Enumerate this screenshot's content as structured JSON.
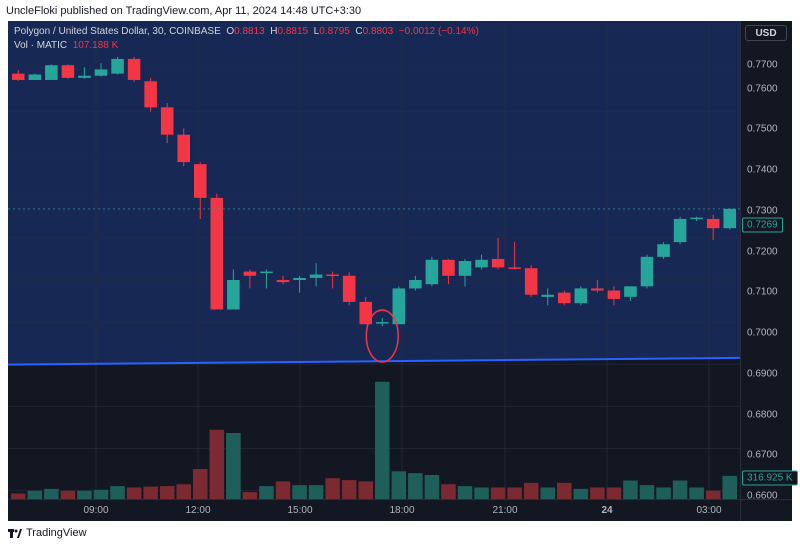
{
  "header": {
    "published_line": "UncleFloki published on TradingView.com, Apr 11, 2024 14:48 UTC+3:30"
  },
  "legend": {
    "symbol": "Polygon / United States Dollar, 30, COINBASE",
    "o_label": "O",
    "o_value": "0.8813",
    "h_label": "H",
    "h_value": "0.8815",
    "l_label": "L",
    "l_value": "0.8795",
    "c_label": "C",
    "c_value": "0.8803",
    "change": "−0.0012 (−0.14%)",
    "vol_label": "Vol · MATIC",
    "vol_value": "107.188 K"
  },
  "price_axis": {
    "currency_button": "USD",
    "ticks": [
      "0.7700",
      "0.7600",
      "0.7500",
      "0.7400",
      "0.7300",
      "0.7200",
      "0.7100",
      "0.7000",
      "0.6900",
      "0.6800",
      "0.6700",
      "0.6600"
    ],
    "last_price_tag": "0.7269",
    "volume_tag": "316.925 K"
  },
  "time_axis": {
    "ticks": [
      "09:00",
      "12:00",
      "15:00",
      "18:00",
      "21:00",
      "24",
      "03:00"
    ]
  },
  "footer": {
    "brand": "TradingView"
  },
  "colors": {
    "background": "#131722",
    "upper_shade": "#1a2b5e",
    "bull": "#26a69a",
    "bear": "#f23645",
    "vol_bull": "#1e5f5a",
    "vol_bear": "#7a2a30",
    "trendline": "#2962ff",
    "ellipse": "#f23645"
  },
  "chart_data": {
    "type": "candlestick",
    "title": "Polygon / United States Dollar, 30, COINBASE",
    "ylim": [
      0.658,
      0.7715
    ],
    "grid": true,
    "candles": [
      {
        "o": 0.759,
        "h": 0.7598,
        "l": 0.7573,
        "c": 0.7575
      },
      {
        "o": 0.7575,
        "h": 0.759,
        "l": 0.7575,
        "c": 0.7588
      },
      {
        "o": 0.7575,
        "h": 0.7612,
        "l": 0.7575,
        "c": 0.761
      },
      {
        "o": 0.761,
        "h": 0.7612,
        "l": 0.7578,
        "c": 0.758
      },
      {
        "o": 0.758,
        "h": 0.7605,
        "l": 0.7578,
        "c": 0.7585
      },
      {
        "o": 0.7585,
        "h": 0.7615,
        "l": 0.7583,
        "c": 0.76
      },
      {
        "o": 0.759,
        "h": 0.763,
        "l": 0.7588,
        "c": 0.7625
      },
      {
        "o": 0.7625,
        "h": 0.763,
        "l": 0.757,
        "c": 0.7575
      },
      {
        "o": 0.7572,
        "h": 0.758,
        "l": 0.75,
        "c": 0.751
      },
      {
        "o": 0.751,
        "h": 0.752,
        "l": 0.7425,
        "c": 0.7445
      },
      {
        "o": 0.7445,
        "h": 0.746,
        "l": 0.737,
        "c": 0.738
      },
      {
        "o": 0.7375,
        "h": 0.738,
        "l": 0.7245,
        "c": 0.7295
      },
      {
        "o": 0.7295,
        "h": 0.7305,
        "l": 0.703,
        "c": 0.703
      },
      {
        "o": 0.703,
        "h": 0.7125,
        "l": 0.703,
        "c": 0.71
      },
      {
        "o": 0.712,
        "h": 0.7125,
        "l": 0.708,
        "c": 0.711
      },
      {
        "o": 0.712,
        "h": 0.7125,
        "l": 0.708,
        "c": 0.712
      },
      {
        "o": 0.71,
        "h": 0.711,
        "l": 0.709,
        "c": 0.7095
      },
      {
        "o": 0.71,
        "h": 0.711,
        "l": 0.707,
        "c": 0.7105
      },
      {
        "o": 0.7105,
        "h": 0.714,
        "l": 0.7085,
        "c": 0.7113
      },
      {
        "o": 0.7113,
        "h": 0.712,
        "l": 0.708,
        "c": 0.711
      },
      {
        "o": 0.711,
        "h": 0.7118,
        "l": 0.704,
        "c": 0.7048
      },
      {
        "o": 0.7048,
        "h": 0.706,
        "l": 0.6995,
        "c": 0.6995
      },
      {
        "o": 0.7,
        "h": 0.701,
        "l": 0.699,
        "c": 0.7
      },
      {
        "o": 0.6995,
        "h": 0.7085,
        "l": 0.6995,
        "c": 0.708
      },
      {
        "o": 0.708,
        "h": 0.711,
        "l": 0.7075,
        "c": 0.71
      },
      {
        "o": 0.709,
        "h": 0.7155,
        "l": 0.7085,
        "c": 0.7148
      },
      {
        "o": 0.7148,
        "h": 0.715,
        "l": 0.709,
        "c": 0.711
      },
      {
        "o": 0.711,
        "h": 0.715,
        "l": 0.7085,
        "c": 0.7145
      },
      {
        "o": 0.713,
        "h": 0.716,
        "l": 0.7125,
        "c": 0.7148
      },
      {
        "o": 0.715,
        "h": 0.72,
        "l": 0.7125,
        "c": 0.713
      },
      {
        "o": 0.713,
        "h": 0.719,
        "l": 0.7125,
        "c": 0.7128
      },
      {
        "o": 0.7128,
        "h": 0.7135,
        "l": 0.706,
        "c": 0.7065
      },
      {
        "o": 0.706,
        "h": 0.708,
        "l": 0.704,
        "c": 0.7065
      },
      {
        "o": 0.707,
        "h": 0.7075,
        "l": 0.704,
        "c": 0.7045
      },
      {
        "o": 0.7045,
        "h": 0.7085,
        "l": 0.704,
        "c": 0.708
      },
      {
        "o": 0.708,
        "h": 0.71,
        "l": 0.707,
        "c": 0.7075
      },
      {
        "o": 0.7075,
        "h": 0.7085,
        "l": 0.704,
        "c": 0.7055
      },
      {
        "o": 0.706,
        "h": 0.708,
        "l": 0.705,
        "c": 0.7085
      },
      {
        "o": 0.7085,
        "h": 0.716,
        "l": 0.708,
        "c": 0.7155
      },
      {
        "o": 0.7155,
        "h": 0.719,
        "l": 0.715,
        "c": 0.7185
      },
      {
        "o": 0.719,
        "h": 0.725,
        "l": 0.7185,
        "c": 0.7245
      },
      {
        "o": 0.7245,
        "h": 0.725,
        "l": 0.724,
        "c": 0.7248
      },
      {
        "o": 0.7245,
        "h": 0.7255,
        "l": 0.7195,
        "c": 0.7223
      },
      {
        "o": 0.7223,
        "h": 0.727,
        "l": 0.722,
        "c": 0.7269
      }
    ],
    "volume": [
      12,
      18,
      22,
      18,
      18,
      20,
      28,
      25,
      27,
      28,
      32,
      65,
      150,
      143,
      15,
      28,
      38,
      30,
      30,
      45,
      41,
      38,
      254,
      60,
      56,
      52,
      32,
      28,
      25,
      25,
      25,
      35,
      25,
      35,
      22,
      25,
      25,
      40,
      30,
      25,
      40,
      25,
      18,
      50
    ],
    "annotations": [
      "support trendline",
      "ellipse around wick low"
    ]
  }
}
